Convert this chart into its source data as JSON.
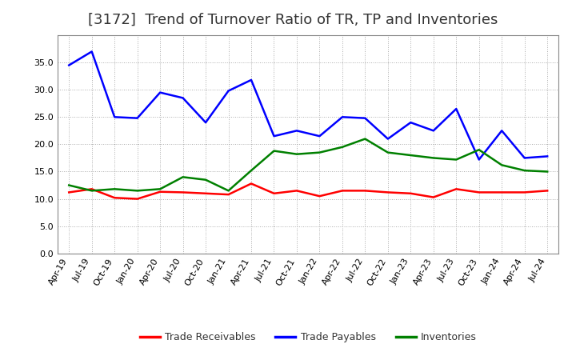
{
  "title": "[3172]  Trend of Turnover Ratio of TR, TP and Inventories",
  "ylim": [
    0.0,
    40.0
  ],
  "yticks": [
    0.0,
    5.0,
    10.0,
    15.0,
    20.0,
    25.0,
    30.0,
    35.0
  ],
  "x_labels": [
    "Apr-19",
    "Jul-19",
    "Oct-19",
    "Jan-20",
    "Apr-20",
    "Jul-20",
    "Oct-20",
    "Jan-21",
    "Apr-21",
    "Jul-21",
    "Oct-21",
    "Jan-22",
    "Apr-22",
    "Jul-22",
    "Oct-22",
    "Jan-23",
    "Apr-23",
    "Jul-23",
    "Oct-23",
    "Jan-24",
    "Apr-24",
    "Jul-24"
  ],
  "trade_receivables": [
    11.2,
    11.8,
    10.2,
    10.0,
    11.3,
    11.2,
    11.0,
    10.8,
    12.8,
    11.0,
    11.5,
    10.5,
    11.5,
    11.5,
    11.2,
    11.0,
    10.3,
    11.8,
    11.2,
    11.2,
    11.2,
    11.5
  ],
  "trade_payables": [
    34.5,
    37.0,
    25.0,
    24.8,
    29.5,
    28.5,
    24.0,
    29.8,
    31.8,
    21.5,
    22.5,
    21.5,
    25.0,
    24.8,
    21.0,
    24.0,
    22.5,
    26.5,
    17.2,
    22.5,
    17.5,
    17.8
  ],
  "inventories": [
    12.5,
    11.5,
    11.8,
    11.5,
    11.8,
    14.0,
    13.5,
    11.5,
    15.2,
    18.8,
    18.2,
    18.5,
    19.5,
    21.0,
    18.5,
    18.0,
    17.5,
    17.2,
    19.0,
    16.2,
    15.2,
    15.0
  ],
  "tr_color": "#ff0000",
  "tp_color": "#0000ff",
  "inv_color": "#008000",
  "tr_label": "Trade Receivables",
  "tp_label": "Trade Payables",
  "inv_label": "Inventories",
  "background_color": "#ffffff",
  "grid_color": "#999999",
  "line_width": 1.8,
  "title_fontsize": 13,
  "tick_fontsize": 8,
  "legend_fontsize": 9
}
